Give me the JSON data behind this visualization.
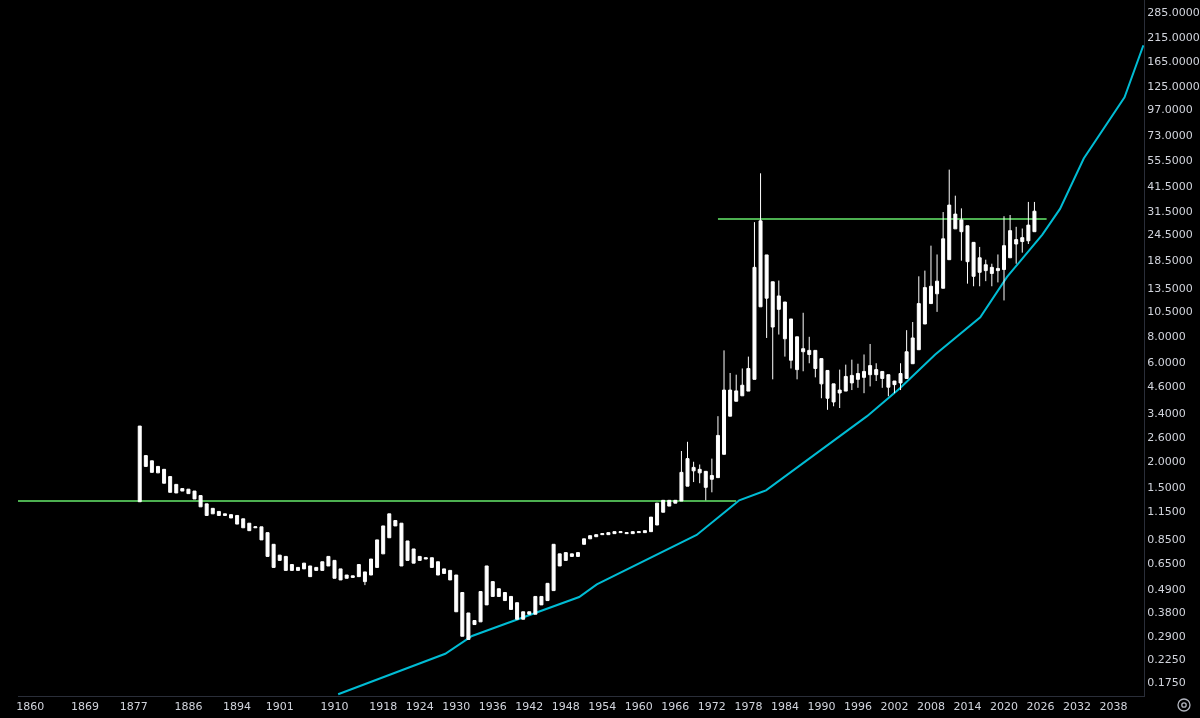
{
  "chart_data": {
    "type": "candlestick",
    "color": "#ffffff",
    "x": [
      1878,
      1879,
      1880,
      1881,
      1882,
      1883,
      1884,
      1885,
      1886,
      1887,
      1888,
      1889,
      1890,
      1891,
      1892,
      1893,
      1894,
      1895,
      1896,
      1897,
      1898,
      1899,
      1900,
      1901,
      1902,
      1903,
      1904,
      1905,
      1906,
      1907,
      1908,
      1909,
      1910,
      1911,
      1912,
      1913,
      1914,
      1915,
      1916,
      1917,
      1918,
      1919,
      1920,
      1921,
      1922,
      1923,
      1924,
      1925,
      1926,
      1927,
      1928,
      1929,
      1930,
      1931,
      1932,
      1933,
      1934,
      1935,
      1936,
      1937,
      1938,
      1939,
      1940,
      1941,
      1942,
      1943,
      1944,
      1945,
      1946,
      1947,
      1948,
      1949,
      1950,
      1951,
      1952,
      1953,
      1954,
      1955,
      1956,
      1957,
      1958,
      1959,
      1960,
      1961,
      1962,
      1963,
      1964,
      1965,
      1966,
      1967,
      1968,
      1969,
      1970,
      1971,
      1972,
      1973,
      1974,
      1975,
      1976,
      1977,
      1978,
      1979,
      1980,
      1981,
      1982,
      1983,
      1984,
      1985,
      1986,
      1987,
      1988,
      1989,
      1990,
      1991,
      1992,
      1993,
      1994,
      1995,
      1996,
      1997,
      1998,
      1999,
      2000,
      2001,
      2002,
      2003,
      2004,
      2005,
      2006,
      2007,
      2008,
      2009,
      2010,
      2011,
      2012,
      2013,
      2014,
      2015,
      2016,
      2017,
      2018,
      2019,
      2020,
      2021,
      2022,
      2023,
      2024,
      2025
    ],
    "ohlc": [
      [
        1.28,
        2.95,
        1.28,
        2.95
      ],
      [
        1.89,
        2.13,
        1.89,
        2.13
      ],
      [
        1.77,
        2.01,
        1.77,
        2.01
      ],
      [
        1.76,
        1.89,
        1.76,
        1.89
      ],
      [
        1.57,
        1.83,
        1.57,
        1.83
      ],
      [
        1.42,
        1.69,
        1.42,
        1.69
      ],
      [
        1.41,
        1.55,
        1.41,
        1.55
      ],
      [
        1.44,
        1.48,
        1.44,
        1.48
      ],
      [
        1.4,
        1.47,
        1.4,
        1.47
      ],
      [
        1.32,
        1.44,
        1.32,
        1.44
      ],
      [
        1.21,
        1.37,
        1.21,
        1.37
      ],
      [
        1.1,
        1.25,
        1.1,
        1.25
      ],
      [
        1.12,
        1.19,
        1.12,
        1.19
      ],
      [
        1.1,
        1.15,
        1.1,
        1.15
      ],
      [
        1.1,
        1.12,
        1.1,
        1.12
      ],
      [
        1.07,
        1.11,
        1.07,
        1.11
      ],
      [
        1.0,
        1.1,
        1.0,
        1.1
      ],
      [
        0.96,
        1.06,
        0.96,
        1.06
      ],
      [
        0.93,
        1.01,
        0.93,
        1.01
      ],
      [
        0.96,
        0.97,
        0.96,
        0.97
      ],
      [
        0.84,
        0.97,
        0.84,
        0.97
      ],
      [
        0.7,
        0.91,
        0.7,
        0.91
      ],
      [
        0.62,
        0.8,
        0.62,
        0.8
      ],
      [
        0.67,
        0.71,
        0.67,
        0.71
      ],
      [
        0.6,
        0.7,
        0.6,
        0.7
      ],
      [
        0.6,
        0.64,
        0.6,
        0.64
      ],
      [
        0.6,
        0.62,
        0.6,
        0.62
      ],
      [
        0.61,
        0.65,
        0.61,
        0.65
      ],
      [
        0.56,
        0.63,
        0.56,
        0.63
      ],
      [
        0.6,
        0.62,
        0.6,
        0.62
      ],
      [
        0.6,
        0.66,
        0.6,
        0.66
      ],
      [
        0.63,
        0.7,
        0.63,
        0.7
      ],
      [
        0.55,
        0.67,
        0.55,
        0.67
      ],
      [
        0.54,
        0.61,
        0.54,
        0.61
      ],
      [
        0.55,
        0.57,
        0.55,
        0.57
      ],
      [
        0.555,
        0.565,
        0.555,
        0.565
      ],
      [
        0.56,
        0.64,
        0.56,
        0.64
      ],
      [
        0.53,
        0.59,
        0.51,
        0.59
      ],
      [
        0.57,
        0.68,
        0.57,
        0.68
      ],
      [
        0.62,
        0.84,
        0.62,
        0.84
      ],
      [
        0.72,
        0.98,
        0.72,
        0.98
      ],
      [
        0.86,
        1.12,
        0.86,
        1.12
      ],
      [
        0.98,
        1.04,
        0.98,
        1.04
      ],
      [
        0.63,
        1.01,
        0.63,
        1.01
      ],
      [
        0.67,
        0.83,
        0.67,
        0.83
      ],
      [
        0.65,
        0.76,
        0.65,
        0.76
      ],
      [
        0.67,
        0.7,
        0.67,
        0.7
      ],
      [
        0.68,
        0.69,
        0.68,
        0.69
      ],
      [
        0.62,
        0.69,
        0.62,
        0.69
      ],
      [
        0.57,
        0.66,
        0.57,
        0.66
      ],
      [
        0.58,
        0.61,
        0.58,
        0.61
      ],
      [
        0.54,
        0.6,
        0.54,
        0.6
      ],
      [
        0.38,
        0.57,
        0.38,
        0.57
      ],
      [
        0.29,
        0.47,
        0.29,
        0.47
      ],
      [
        0.28,
        0.375,
        0.28,
        0.375
      ],
      [
        0.33,
        0.345,
        0.33,
        0.345
      ],
      [
        0.34,
        0.475,
        0.34,
        0.475
      ],
      [
        0.41,
        0.63,
        0.41,
        0.63
      ],
      [
        0.45,
        0.53,
        0.45,
        0.53
      ],
      [
        0.45,
        0.49,
        0.45,
        0.49
      ],
      [
        0.43,
        0.47,
        0.43,
        0.47
      ],
      [
        0.39,
        0.45,
        0.39,
        0.45
      ],
      [
        0.35,
        0.42,
        0.35,
        0.42
      ],
      [
        0.35,
        0.38,
        0.35,
        0.38
      ],
      [
        0.37,
        0.38,
        0.37,
        0.38
      ],
      [
        0.37,
        0.45,
        0.37,
        0.45
      ],
      [
        0.41,
        0.45,
        0.41,
        0.45
      ],
      [
        0.43,
        0.52,
        0.43,
        0.52
      ],
      [
        0.48,
        0.8,
        0.48,
        0.8
      ],
      [
        0.63,
        0.72,
        0.63,
        0.72
      ],
      [
        0.67,
        0.73,
        0.67,
        0.73
      ],
      [
        0.7,
        0.72,
        0.7,
        0.72
      ],
      [
        0.7,
        0.73,
        0.7,
        0.73
      ],
      [
        0.8,
        0.85,
        0.8,
        0.85
      ],
      [
        0.85,
        0.88,
        0.85,
        0.88
      ],
      [
        0.87,
        0.89,
        0.87,
        0.89
      ],
      [
        0.89,
        0.9,
        0.89,
        0.9
      ],
      [
        0.89,
        0.91,
        0.89,
        0.91
      ],
      [
        0.9,
        0.92,
        0.9,
        0.92
      ],
      [
        0.91,
        0.92,
        0.91,
        0.92
      ],
      [
        0.9,
        0.91,
        0.9,
        0.91
      ],
      [
        0.9,
        0.92,
        0.9,
        0.92
      ],
      [
        0.91,
        0.92,
        0.91,
        0.92
      ],
      [
        0.91,
        0.93,
        0.91,
        0.93
      ],
      [
        0.92,
        1.08,
        0.92,
        1.08
      ],
      [
        0.99,
        1.26,
        0.99,
        1.26
      ],
      [
        1.14,
        1.3,
        1.14,
        1.3
      ],
      [
        1.22,
        1.3,
        1.22,
        1.3
      ],
      [
        1.26,
        1.3,
        1.26,
        1.3
      ],
      [
        1.29,
        2.24,
        1.29,
        1.77
      ],
      [
        1.52,
        2.48,
        1.52,
        2.06
      ],
      [
        1.8,
        1.99,
        1.59,
        1.87
      ],
      [
        1.76,
        1.93,
        1.57,
        1.83
      ],
      [
        1.5,
        1.79,
        1.3,
        1.79
      ],
      [
        1.64,
        2.06,
        1.42,
        1.71
      ],
      [
        1.67,
        3.29,
        1.67,
        2.66
      ],
      [
        2.16,
        6.8,
        2.16,
        4.39
      ],
      [
        3.29,
        5.3,
        3.29,
        4.39
      ],
      [
        3.88,
        5.2,
        3.88,
        4.35
      ],
      [
        4.12,
        5.57,
        4.12,
        4.63
      ],
      [
        4.34,
        6.35,
        4.34,
        5.57
      ],
      [
        4.94,
        28.0,
        4.94,
        17.0
      ],
      [
        11.0,
        48.0,
        11.0,
        28.4
      ],
      [
        12.1,
        19.5,
        7.8,
        19.5
      ],
      [
        8.8,
        14.5,
        4.94,
        14.5
      ],
      [
        10.7,
        14.7,
        8.1,
        12.4
      ],
      [
        7.73,
        11.6,
        6.35,
        11.6
      ],
      [
        6.1,
        9.62,
        5.57,
        9.62
      ],
      [
        5.5,
        7.9,
        4.94,
        7.9
      ],
      [
        6.7,
        10.3,
        5.4,
        6.93
      ],
      [
        6.5,
        7.9,
        5.9,
        6.8
      ],
      [
        5.57,
        6.8,
        5.05,
        6.8
      ],
      [
        4.7,
        6.21,
        4.01,
        6.21
      ],
      [
        4.01,
        5.45,
        3.53,
        5.45
      ],
      [
        3.85,
        4.7,
        3.67,
        4.7
      ],
      [
        4.25,
        5.5,
        3.6,
        4.39
      ],
      [
        4.34,
        5.81,
        4.34,
        5.1
      ],
      [
        4.75,
        6.14,
        4.39,
        5.16
      ],
      [
        4.94,
        5.87,
        4.5,
        5.27
      ],
      [
        5.05,
        6.5,
        4.24,
        5.39
      ],
      [
        5.2,
        7.3,
        4.57,
        5.75
      ],
      [
        5.2,
        5.9,
        4.85,
        5.5
      ],
      [
        4.99,
        5.39,
        4.5,
        5.39
      ],
      [
        4.53,
        5.2,
        4.1,
        5.2
      ],
      [
        4.66,
        4.85,
        4.24,
        4.85
      ],
      [
        4.75,
        5.9,
        4.39,
        5.27
      ],
      [
        4.99,
        8.5,
        4.99,
        6.7
      ],
      [
        5.87,
        9.3,
        5.87,
        7.8
      ],
      [
        6.85,
        15.4,
        6.85,
        11.4
      ],
      [
        9.1,
        16.4,
        9.1,
        13.6
      ],
      [
        11.4,
        21.6,
        11.4,
        13.8
      ],
      [
        12.7,
        19.6,
        10.4,
        14.6
      ],
      [
        13.5,
        31.3,
        13.5,
        23.3
      ],
      [
        18.5,
        50.0,
        18.5,
        33.8
      ],
      [
        26.0,
        37.5,
        26.0,
        30.6
      ],
      [
        25.2,
        32.6,
        18.3,
        28.7
      ],
      [
        18.1,
        26.9,
        14.2,
        26.9
      ],
      [
        15.4,
        22.4,
        13.8,
        22.4
      ],
      [
        16.1,
        21.3,
        13.8,
        18.9
      ],
      [
        16.4,
        18.5,
        14.6,
        17.5
      ],
      [
        15.9,
        17.7,
        13.8,
        17.0
      ],
      [
        16.4,
        19.6,
        14.4,
        16.8
      ],
      [
        16.6,
        29.9,
        11.8,
        21.6
      ],
      [
        18.9,
        30.3,
        18.9,
        25.5
      ],
      [
        22.0,
        26.6,
        17.7,
        23.1
      ],
      [
        22.6,
        26.1,
        20.0,
        23.6
      ],
      [
        22.8,
        35.0,
        22.0,
        27.1
      ],
      [
        25.2,
        35.0,
        25.2,
        31.6
      ]
    ],
    "series": [
      {
        "type": "line",
        "color": "#4caf50",
        "x": [
          1858,
          1976
        ],
        "values": [
          1.29,
          1.29
        ]
      },
      {
        "type": "line",
        "color": "#4caf50",
        "x": [
          1973,
          2027
        ],
        "values": [
          29.0,
          29.0
        ]
      },
      {
        "type": "line",
        "color": "#00bcd4",
        "x": [
          1910.6,
          1928.2,
          1932.6,
          1950.2,
          1953.1,
          1969.5,
          1976.5,
          1980.9,
          1997.5,
          2002.9,
          2008.7,
          2016.1,
          2020.5,
          2026.3,
          2029.2,
          2033.1,
          2039.8,
          2042.9
        ],
        "values": [
          0.153,
          0.239,
          0.291,
          0.447,
          0.514,
          0.887,
          1.3,
          1.45,
          3.29,
          4.48,
          6.5,
          9.8,
          15.3,
          24.4,
          32.4,
          56.5,
          111,
          197
        ]
      }
    ],
    "log": "y",
    "grid": false,
    "xlim": [
      1858,
      2043
    ],
    "ylim": [
      0.15,
      325
    ],
    "xticks": [
      1860,
      1869,
      1877,
      1886,
      1894,
      1901,
      1910,
      1918,
      1924,
      1930,
      1936,
      1942,
      1948,
      1954,
      1960,
      1966,
      1972,
      1978,
      1984,
      1990,
      1996,
      2002,
      2008,
      2014,
      2020,
      2026,
      2032,
      2038
    ],
    "yticks": [
      {
        "value": 285,
        "label": "285.0000"
      },
      {
        "value": 215,
        "label": "215.0000"
      },
      {
        "value": 165,
        "label": "165.0000"
      },
      {
        "value": 125,
        "label": "125.0000"
      },
      {
        "value": 97,
        "label": "97.0000"
      },
      {
        "value": 73,
        "label": "73.0000"
      },
      {
        "value": 55.5,
        "label": "55.5000"
      },
      {
        "value": 41.5,
        "label": "41.5000"
      },
      {
        "value": 31.5,
        "label": "31.5000"
      },
      {
        "value": 24.5,
        "label": "24.5000"
      },
      {
        "value": 18.5,
        "label": "18.5000"
      },
      {
        "value": 13.5,
        "label": "13.5000"
      },
      {
        "value": 10.5,
        "label": "10.5000"
      },
      {
        "value": 8,
        "label": "8.0000"
      },
      {
        "value": 6,
        "label": "6.0000"
      },
      {
        "value": 4.6,
        "label": "4.6000"
      },
      {
        "value": 3.4,
        "label": "3.4000"
      },
      {
        "value": 2.6,
        "label": "2.6000"
      },
      {
        "value": 2,
        "label": "2.0000"
      },
      {
        "value": 1.5,
        "label": "1.5000"
      },
      {
        "value": 1.15,
        "label": "1.1500"
      },
      {
        "value": 0.85,
        "label": "0.8500"
      },
      {
        "value": 0.65,
        "label": "0.6500"
      },
      {
        "value": 0.49,
        "label": "0.4900"
      },
      {
        "value": 0.38,
        "label": "0.3800"
      },
      {
        "value": 0.29,
        "label": "0.2900"
      },
      {
        "value": 0.225,
        "label": "0.2250"
      },
      {
        "value": 0.175,
        "label": "0.1750"
      }
    ]
  }
}
